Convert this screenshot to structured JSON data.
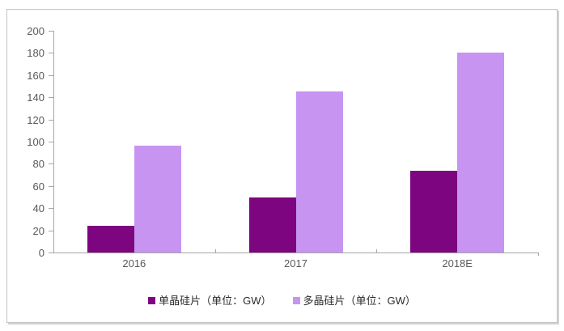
{
  "chart_data": {
    "type": "bar",
    "title": "",
    "categories": [
      "2016",
      "2017",
      "2018E"
    ],
    "series": [
      {
        "name": "单晶硅片（单位：GW）",
        "color": "#7d0580",
        "values": [
          24,
          50,
          74
        ]
      },
      {
        "name": "多晶硅片（单位：GW）",
        "color": "#c794f2",
        "values": [
          96,
          145,
          180
        ]
      }
    ],
    "xlabel": "",
    "ylabel": "",
    "ylim": [
      0,
      200
    ],
    "ytick_step": 20,
    "yticks": [
      0,
      20,
      40,
      60,
      80,
      100,
      120,
      140,
      160,
      180,
      200
    ],
    "grid": false,
    "legend_position": "bottom",
    "axis_color": "#a6a6a6",
    "tick_label_color": "#595959",
    "legend_text_color": "#2b2b2b"
  }
}
